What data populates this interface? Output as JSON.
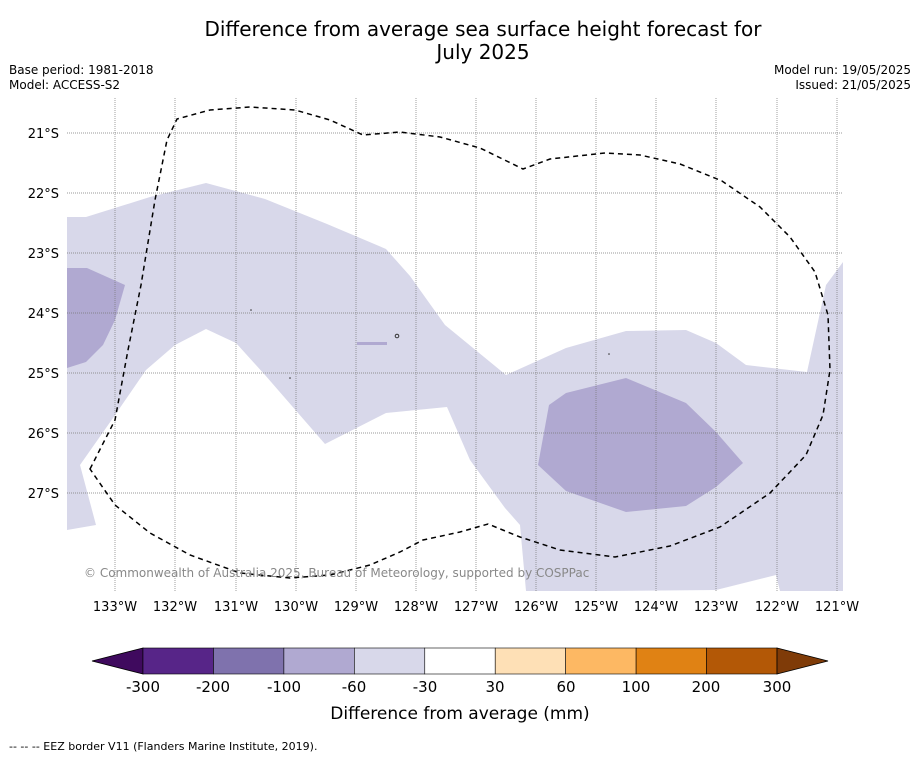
{
  "header": {
    "title_line1": "Difference from average sea surface height forecast for",
    "title_line2": "July 2025",
    "base_period": "Base period: 1981-2018",
    "model": "Model: ACCESS-S2",
    "model_run": "Model run: 19/05/2025",
    "issued": "Issued: 21/05/2025"
  },
  "map": {
    "lat_labels": [
      "21°S",
      "22°S",
      "23°S",
      "24°S",
      "25°S",
      "26°S",
      "27°S"
    ],
    "lon_labels": [
      "133°W",
      "132°W",
      "131°W",
      "130°W",
      "129°W",
      "128°W",
      "127°W",
      "126°W",
      "125°W",
      "124°W",
      "123°W",
      "122°W",
      "121°W"
    ],
    "copyright": "© Commonwealth of Australia 2025, Bureau of Meteorology, supported by COSPPac",
    "fill_colors": {
      "range_-100_-60": "#b0a9d1",
      "range_-60_-30": "#d8d8ea"
    },
    "border_style": "dashed"
  },
  "colorbar": {
    "ticks": [
      "-300",
      "-200",
      "-100",
      "-60",
      "-30",
      "30",
      "60",
      "100",
      "200",
      "300"
    ],
    "colors": [
      "#3f0a5e",
      "#572588",
      "#7f72ad",
      "#b0a9d1",
      "#d8d8ea",
      "#ffffff",
      "#fee0b6",
      "#fdb863",
      "#e08214",
      "#b35806",
      "#7f3b08"
    ],
    "title": "Difference from average (mm)"
  },
  "footer": {
    "legend_text": "--  --  -- EEZ border V11 (Flanders Marine Institute, 2019)."
  }
}
